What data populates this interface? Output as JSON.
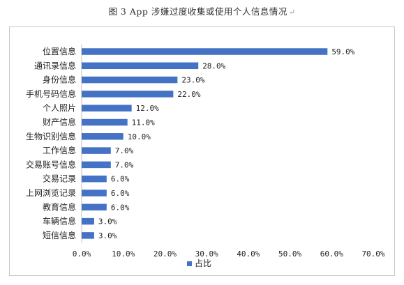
{
  "caption": {
    "text": "图 3  App 涉嫌过度收集或使用个人信息情况",
    "mark": "↵"
  },
  "chart_data": {
    "type": "bar",
    "orientation": "horizontal",
    "title": "图 3  App 涉嫌过度收集或使用个人信息情况",
    "categories": [
      "位置信息",
      "通讯录信息",
      "身份信息",
      "手机号码信息",
      "个人照片",
      "财产信息",
      "生物识别信息",
      "工作信息",
      "交易账号信息",
      "交易记录",
      "上网浏览记录",
      "教育信息",
      "车辆信息",
      "短信信息"
    ],
    "series": [
      {
        "name": "占比",
        "values": [
          59.0,
          28.0,
          23.0,
          22.0,
          12.0,
          11.0,
          10.0,
          7.0,
          7.0,
          6.0,
          6.0,
          6.0,
          3.0,
          3.0
        ],
        "labels": [
          "59.0%",
          "28.0%",
          "23.0%",
          "22.0%",
          "12.0%",
          "11.0%",
          "10.0%",
          "7.0%",
          "7.0%",
          "6.0%",
          "6.0%",
          "6.0%",
          "3.0%",
          "3.0%"
        ],
        "color": "#4472c4"
      }
    ],
    "xlim": [
      0,
      70
    ],
    "xticks": [
      "0.0%",
      "10.0%",
      "20.0%",
      "30.0%",
      "40.0%",
      "50.0%",
      "60.0%",
      "70.0%"
    ],
    "grid": false,
    "legend": "bottom"
  }
}
